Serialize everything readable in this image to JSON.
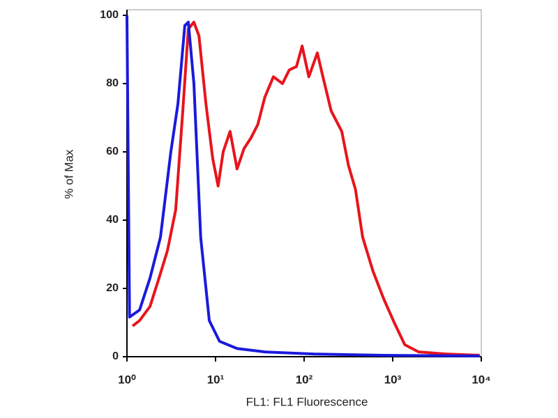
{
  "chart_data": {
    "type": "line",
    "xlabel": "FL1: FL1 Fluorescence",
    "ylabel": "% of Max",
    "xscale": "log",
    "xlim": [
      1,
      10000
    ],
    "ylim": [
      0,
      100
    ],
    "xticks": [
      {
        "value": 1,
        "label": "10⁰"
      },
      {
        "value": 10,
        "label": "10¹"
      },
      {
        "value": 100,
        "label": "10²"
      },
      {
        "value": 1000,
        "label": "10³"
      },
      {
        "value": 10000,
        "label": "10⁴"
      }
    ],
    "yticks": [
      0,
      20,
      40,
      60,
      80,
      100
    ],
    "series": [
      {
        "color": "#e8141c",
        "x": [
          1.16,
          1.39,
          1.82,
          2.3,
          2.86,
          3.55,
          4.27,
          4.93,
          5.7,
          6.5,
          7.8,
          9.3,
          10.7,
          12.2,
          14.6,
          17.5,
          21,
          25,
          30,
          36,
          45,
          57,
          68,
          82,
          95,
          113,
          141,
          163,
          202,
          266,
          317,
          380,
          458,
          600,
          790,
          1040,
          1370,
          1960,
          4000,
          9600
        ],
        "values": [
          9,
          10.6,
          14.7,
          23,
          31,
          43,
          72,
          96,
          98,
          94,
          74,
          58,
          50,
          60,
          66,
          55,
          61,
          64,
          68,
          76,
          82,
          80,
          84,
          85,
          91,
          82,
          89,
          82,
          72,
          66,
          56,
          49,
          35,
          25,
          17,
          10,
          3.5,
          1.4,
          0.8,
          0.4
        ]
      },
      {
        "color": "#1a1adb",
        "x": [
          1.0,
          1.07,
          1.39,
          1.82,
          2.39,
          3.13,
          3.76,
          4.5,
          4.93,
          5.7,
          6.8,
          8.5,
          11.1,
          17.5,
          36,
          128,
          790,
          9600
        ],
        "values": [
          100,
          11.6,
          13.7,
          23,
          35,
          60,
          74,
          97,
          98,
          80,
          35,
          10.6,
          4.5,
          2.4,
          1.4,
          0.8,
          0.4,
          0.2
        ]
      }
    ]
  }
}
